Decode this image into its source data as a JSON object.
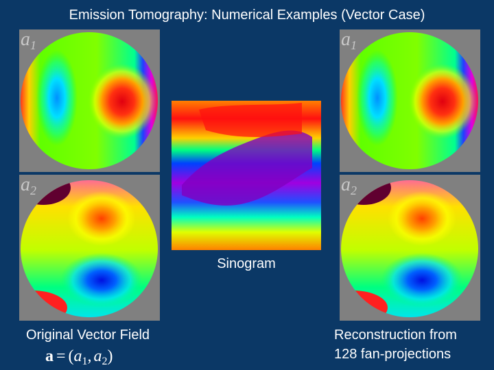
{
  "slide": {
    "title": "Emission Tomography: Numerical Examples (Vector Case)",
    "panels": [
      {
        "symbol": "a",
        "index": "1"
      },
      {
        "symbol": "a",
        "index": "2"
      },
      {
        "symbol": "a",
        "index": "1"
      },
      {
        "symbol": "a",
        "index": "2"
      }
    ],
    "sinogram_caption": "Sinogram",
    "left_caption": "Original Vector Field",
    "formula": {
      "lhs": "a",
      "eq": "=",
      "open": "(",
      "terms": [
        {
          "symbol": "a",
          "index": "1"
        },
        {
          "symbol": "a",
          "index": "2"
        }
      ],
      "sep": ",",
      "close": ")"
    },
    "right_caption": [
      "Reconstruction from",
      "128 fan-projections"
    ]
  }
}
